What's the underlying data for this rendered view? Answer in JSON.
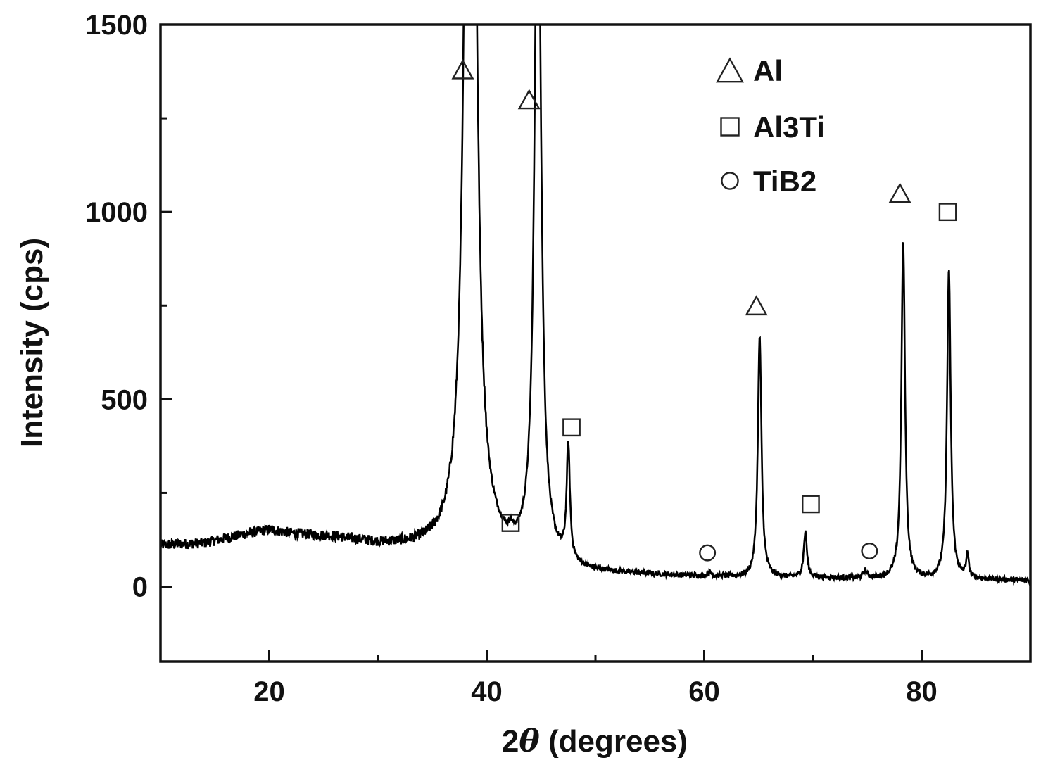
{
  "chart_data": {
    "type": "line",
    "xlabel_prefix": "2",
    "xlabel_symbol": "θ",
    "xlabel_suffix": " (degrees)",
    "ylabel": "Intensity (cps)",
    "xlim": [
      10,
      90
    ],
    "ylim": [
      -200,
      1500
    ],
    "x_ticks": [
      20,
      40,
      60,
      80
    ],
    "x_minor_ticks": [
      30,
      50,
      70
    ],
    "y_ticks": [
      0,
      500,
      1000,
      1500
    ],
    "y_minor_ticks": [
      250,
      750,
      1250
    ],
    "line_color": "#000000",
    "baseline": [
      [
        10,
        110
      ],
      [
        14,
        115
      ],
      [
        18,
        140
      ],
      [
        20,
        150
      ],
      [
        22,
        140
      ],
      [
        26,
        130
      ],
      [
        30,
        110
      ],
      [
        34,
        100
      ],
      [
        36,
        95
      ],
      [
        37,
        100
      ],
      [
        38,
        120
      ],
      [
        40,
        80
      ],
      [
        42,
        70
      ],
      [
        44,
        65
      ],
      [
        46,
        55
      ],
      [
        48,
        40
      ],
      [
        50,
        35
      ],
      [
        55,
        30
      ],
      [
        60,
        25
      ],
      [
        62,
        25
      ],
      [
        64,
        22
      ],
      [
        66,
        22
      ],
      [
        68,
        22
      ],
      [
        70,
        22
      ],
      [
        72,
        22
      ],
      [
        74,
        20
      ],
      [
        76,
        20
      ],
      [
        78,
        20
      ],
      [
        80,
        18
      ],
      [
        84,
        18
      ],
      [
        86,
        18
      ],
      [
        90,
        15
      ]
    ],
    "peaks": [
      {
        "center": 38.5,
        "height": 4000,
        "width": 0.45
      },
      {
        "center": 44.7,
        "height": 2000,
        "width": 0.35
      },
      {
        "center": 47.5,
        "height": 305,
        "width": 0.18
      },
      {
        "center": 42.2,
        "height": 22,
        "width": 0.12
      },
      {
        "center": 65.1,
        "height": 645,
        "width": 0.2
      },
      {
        "center": 69.3,
        "height": 120,
        "width": 0.18
      },
      {
        "center": 74.8,
        "height": 20,
        "width": 0.2
      },
      {
        "center": 78.3,
        "height": 900,
        "width": 0.2
      },
      {
        "center": 82.5,
        "height": 825,
        "width": 0.2
      },
      {
        "center": 84.2,
        "height": 60,
        "width": 0.15
      },
      {
        "center": 60.5,
        "height": 10,
        "width": 0.2
      }
    ],
    "markers": [
      {
        "shape": "triangle",
        "x": 37.8,
        "y": 1380
      },
      {
        "shape": "triangle",
        "x": 43.9,
        "y": 1300
      },
      {
        "shape": "square",
        "x": 42.2,
        "y": 170
      },
      {
        "shape": "square",
        "x": 47.8,
        "y": 425
      },
      {
        "shape": "circle",
        "x": 60.3,
        "y": 90
      },
      {
        "shape": "triangle",
        "x": 64.8,
        "y": 750
      },
      {
        "shape": "square",
        "x": 69.8,
        "y": 220
      },
      {
        "shape": "circle",
        "x": 75.2,
        "y": 95
      },
      {
        "shape": "triangle",
        "x": 78.0,
        "y": 1050
      },
      {
        "shape": "square",
        "x": 82.4,
        "y": 1000
      }
    ],
    "legend_position": "top-right",
    "legend": [
      {
        "shape": "triangle",
        "label": "Al"
      },
      {
        "shape": "square",
        "label": "Al3Ti"
      },
      {
        "shape": "circle",
        "label": "TiB2"
      }
    ]
  }
}
